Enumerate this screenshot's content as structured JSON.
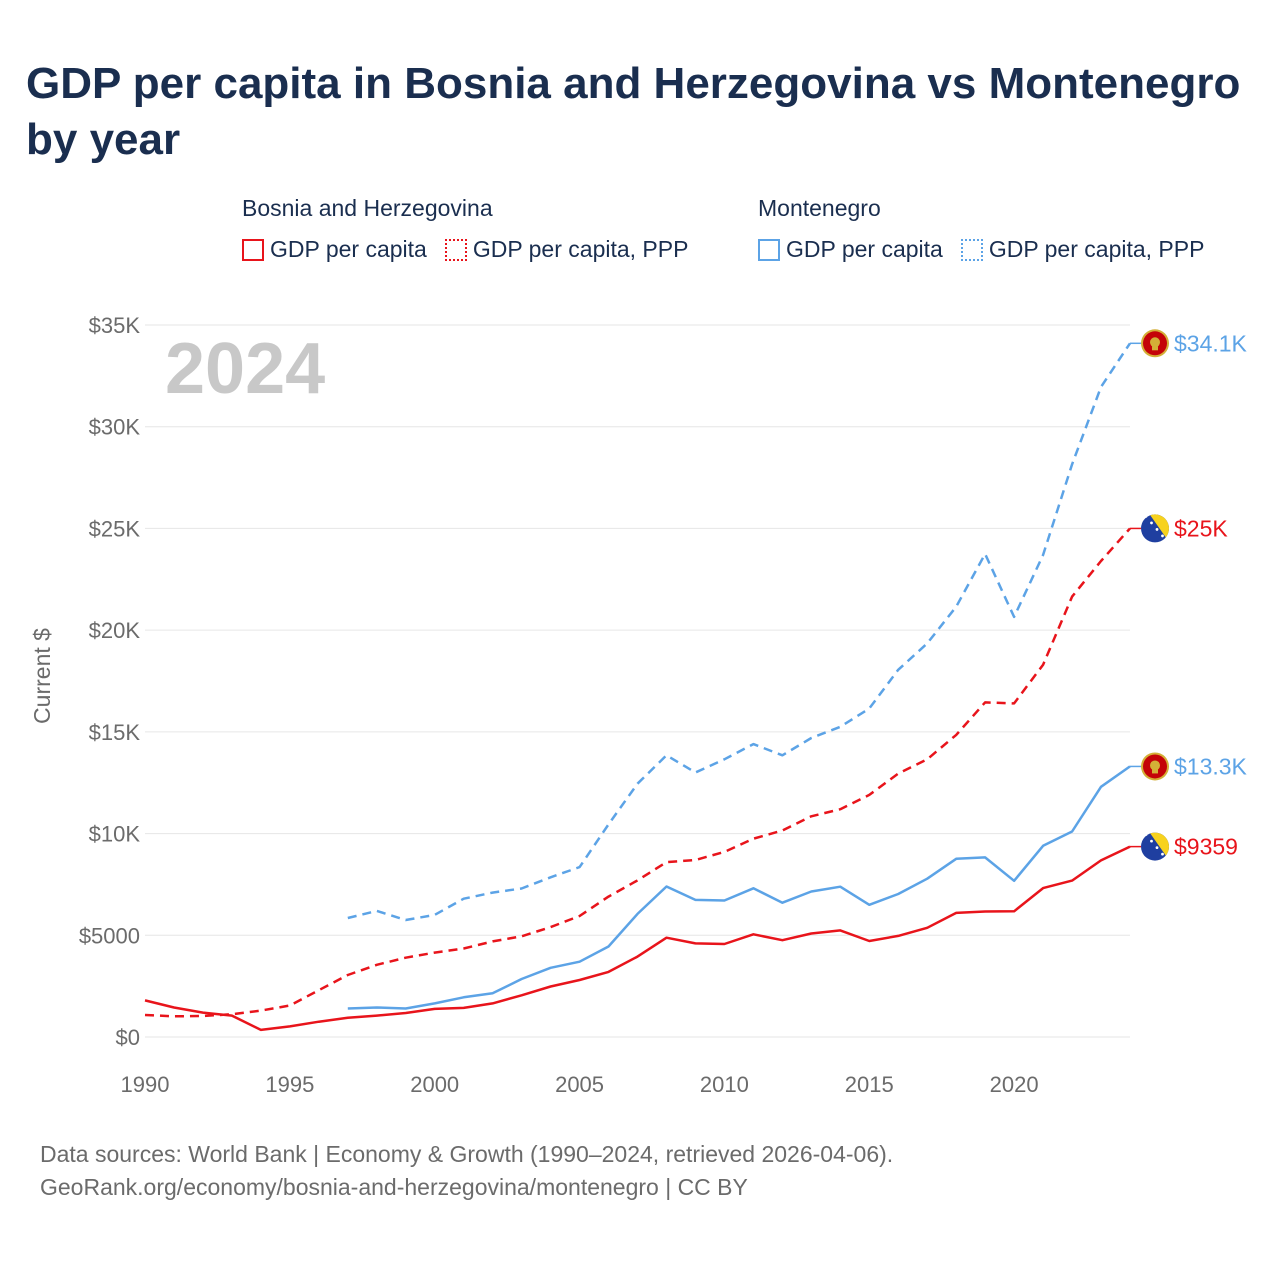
{
  "title": "GDP per capita in Bosnia and Herzegovina vs Montenegro by year",
  "legend": {
    "groups": [
      {
        "name": "Bosnia and Herzegovina",
        "items": [
          "GDP per capita",
          "GDP per capita, PPP"
        ]
      },
      {
        "name": "Montenegro",
        "items": [
          "GDP per capita",
          "GDP per capita, PPP"
        ]
      }
    ]
  },
  "colors": {
    "bosnia": "#e8141b",
    "montenegro": "#5ca3e6",
    "title": "#1a2e4f",
    "axis_text": "#6b6b6b",
    "year_watermark": "#c8c8c8",
    "grid": "#e6e6e6"
  },
  "chart_data": {
    "type": "line",
    "title": "GDP per capita in Bosnia and Herzegovina vs Montenegro by year",
    "xlabel": "",
    "ylabel": "Current $",
    "xlim": [
      1990,
      2024
    ],
    "ylim": [
      0,
      35000
    ],
    "x_ticks": [
      1990,
      1995,
      2000,
      2005,
      2010,
      2015,
      2020
    ],
    "x_tick_labels": [
      "1990",
      "1995",
      "2000",
      "2005",
      "2010",
      "2015",
      "2020"
    ],
    "y_ticks": [
      0,
      5000,
      10000,
      15000,
      20000,
      25000,
      30000,
      35000
    ],
    "y_tick_labels": [
      "$0",
      "$5000",
      "$10K",
      "$15K",
      "$20K",
      "$25K",
      "$30K",
      "$35K"
    ],
    "grid": true,
    "current_year_label": "2024",
    "series": [
      {
        "name": "Bosnia and Herzegovina GDP per capita, PPP",
        "country": "Bosnia and Herzegovina",
        "color": "#e8141b",
        "dash": true,
        "x": [
          1990,
          1991,
          1992,
          1993,
          1994,
          1995,
          1996,
          1997,
          1998,
          1999,
          2000,
          2001,
          2002,
          2003,
          2004,
          2005,
          2006,
          2007,
          2008,
          2009,
          2010,
          2011,
          2012,
          2013,
          2014,
          2015,
          2016,
          2017,
          2018,
          2019,
          2020,
          2021,
          2022,
          2023,
          2024
        ],
        "values": [
          1080,
          1020,
          1030,
          1120,
          1300,
          1550,
          2300,
          3050,
          3550,
          3900,
          4150,
          4350,
          4700,
          4950,
          5400,
          5950,
          6900,
          7700,
          8600,
          8700,
          9100,
          9750,
          10150,
          10850,
          11200,
          11900,
          12950,
          13650,
          14850,
          16450,
          16400,
          18300,
          21650,
          23400,
          25000
        ],
        "end_label": "$25K"
      },
      {
        "name": "Montenegro GDP per capita, PPP",
        "country": "Montenegro",
        "color": "#5ca3e6",
        "dash": true,
        "x": [
          1997,
          1998,
          1999,
          2000,
          2001,
          2002,
          2003,
          2004,
          2005,
          2006,
          2007,
          2008,
          2009,
          2010,
          2011,
          2012,
          2013,
          2014,
          2015,
          2016,
          2017,
          2018,
          2019,
          2020,
          2021,
          2022,
          2023,
          2024
        ],
        "values": [
          5850,
          6200,
          5750,
          6000,
          6800,
          7100,
          7300,
          7850,
          8350,
          10450,
          12450,
          13850,
          13000,
          13650,
          14400,
          13850,
          14700,
          15250,
          16150,
          18050,
          19350,
          21150,
          23750,
          20650,
          23700,
          28150,
          31950,
          34100
        ],
        "end_label": "$34.1K"
      },
      {
        "name": "Bosnia and Herzegovina GDP per capita",
        "country": "Bosnia and Herzegovina",
        "color": "#e8141b",
        "dash": false,
        "x": [
          1990,
          1991,
          1992,
          1993,
          1994,
          1995,
          1996,
          1997,
          1998,
          1999,
          2000,
          2001,
          2002,
          2003,
          2004,
          2005,
          2006,
          2007,
          2008,
          2009,
          2010,
          2011,
          2012,
          2013,
          2014,
          2015,
          2016,
          2017,
          2018,
          2019,
          2020,
          2021,
          2022,
          2023,
          2024
        ],
        "values": [
          1800,
          1450,
          1200,
          1050,
          350,
          520,
          750,
          950,
          1050,
          1180,
          1380,
          1430,
          1650,
          2050,
          2480,
          2800,
          3200,
          3950,
          4880,
          4600,
          4570,
          5050,
          4760,
          5090,
          5240,
          4720,
          4970,
          5370,
          6100,
          6170,
          6180,
          7320,
          7690,
          8680,
          9359
        ],
        "end_label": "$9359"
      },
      {
        "name": "Montenegro GDP per capita",
        "country": "Montenegro",
        "color": "#5ca3e6",
        "dash": false,
        "x": [
          1997,
          1998,
          1999,
          2000,
          2001,
          2002,
          2003,
          2004,
          2005,
          2006,
          2007,
          2008,
          2009,
          2010,
          2011,
          2012,
          2013,
          2014,
          2015,
          2016,
          2017,
          2018,
          2019,
          2020,
          2021,
          2022,
          2023,
          2024
        ],
        "values": [
          1400,
          1450,
          1400,
          1650,
          1950,
          2150,
          2850,
          3400,
          3700,
          4450,
          6050,
          7400,
          6740,
          6710,
          7310,
          6600,
          7150,
          7390,
          6500,
          7030,
          7780,
          8760,
          8830,
          7680,
          9400,
          10100,
          12300,
          13300
        ],
        "end_label": "$13.3K"
      }
    ]
  },
  "footer": {
    "line1": "Data sources: World Bank | Economy & Growth (1990–2024, retrieved 2026-04-06).",
    "line2": "GeoRank.org/economy/bosnia-and-herzegovina/montenegro | CC BY"
  }
}
